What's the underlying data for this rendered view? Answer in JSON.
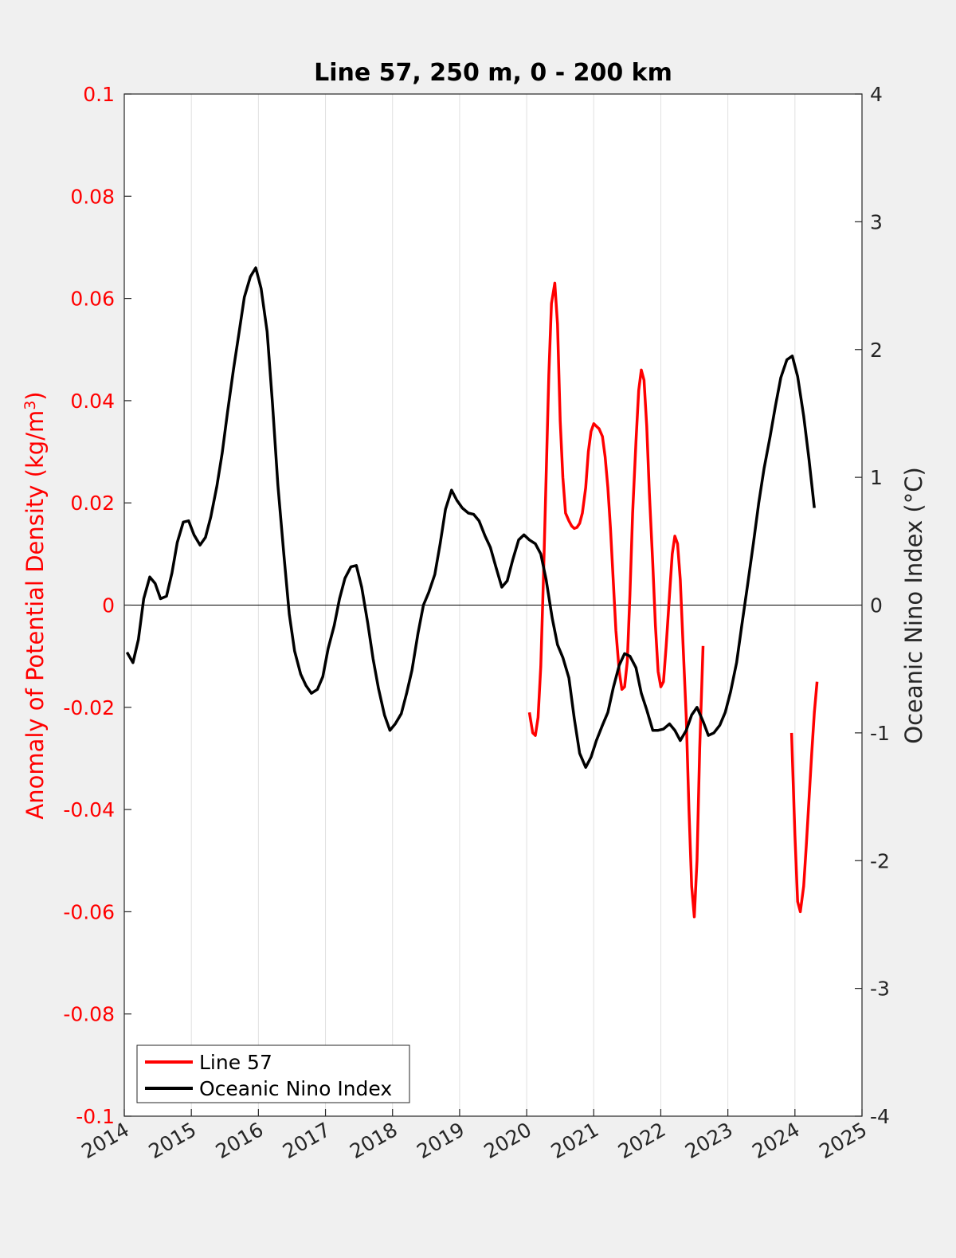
{
  "chart_data": {
    "type": "line",
    "title": "Line 57, 250 m, 0 - 200 km",
    "xlabel": "",
    "ylabel_left": "Anomaly of Potential Density (kg/m",
    "ylabel_left_sup": "3",
    "ylabel_left_close": ")",
    "ylabel_right": "Oceanic Nino Index (°C)",
    "xlim": [
      2014,
      2025
    ],
    "ylim_left": [
      -0.1,
      0.1
    ],
    "ylim_right": [
      -4,
      4
    ],
    "x_ticks": [
      "2014",
      "2015",
      "2016",
      "2017",
      "2018",
      "2019",
      "2020",
      "2021",
      "2022",
      "2023",
      "2024",
      "2025"
    ],
    "y_left_ticks": [
      "0.1",
      "0.08",
      "0.06",
      "0.04",
      "0.02",
      "0",
      "-0.02",
      "-0.04",
      "-0.06",
      "-0.08",
      "-0.1"
    ],
    "y_right_ticks": [
      "4",
      "3",
      "2",
      "1",
      "0",
      "-1",
      "-2",
      "-3",
      "-4"
    ],
    "grid": "vertical",
    "legend_position": "bottom-left",
    "colors": {
      "line57": "#ff0000",
      "oni": "#000000",
      "left_axis": "#ff0000",
      "right_axis": "#262626"
    },
    "series": [
      {
        "name": "Line 57",
        "axis": "left",
        "segments": [
          [
            [
              2020.04,
              -0.021
            ],
            [
              2020.09,
              -0.025
            ],
            [
              2020.13,
              -0.0255
            ],
            [
              2020.17,
              -0.022
            ],
            [
              2020.21,
              -0.012
            ],
            [
              2020.25,
              0.005
            ],
            [
              2020.29,
              0.025
            ],
            [
              2020.33,
              0.045
            ],
            [
              2020.37,
              0.059
            ],
            [
              2020.42,
              0.063
            ],
            [
              2020.46,
              0.055
            ],
            [
              2020.5,
              0.036
            ],
            [
              2020.54,
              0.025
            ],
            [
              2020.58,
              0.018
            ],
            [
              2020.63,
              0.0165
            ],
            [
              2020.67,
              0.0155
            ],
            [
              2020.71,
              0.015
            ],
            [
              2020.75,
              0.0152
            ],
            [
              2020.79,
              0.016
            ],
            [
              2020.83,
              0.018
            ],
            [
              2020.88,
              0.023
            ],
            [
              2020.92,
              0.03
            ],
            [
              2020.96,
              0.034
            ],
            [
              2021.0,
              0.0355
            ],
            [
              2021.04,
              0.035
            ],
            [
              2021.08,
              0.0345
            ],
            [
              2021.13,
              0.033
            ],
            [
              2021.17,
              0.029
            ],
            [
              2021.21,
              0.023
            ],
            [
              2021.25,
              0.015
            ],
            [
              2021.29,
              0.005
            ],
            [
              2021.33,
              -0.005
            ],
            [
              2021.38,
              -0.013
            ],
            [
              2021.42,
              -0.0165
            ],
            [
              2021.46,
              -0.016
            ],
            [
              2021.5,
              -0.011
            ],
            [
              2021.54,
              0.002
            ],
            [
              2021.58,
              0.018
            ],
            [
              2021.63,
              0.032
            ],
            [
              2021.67,
              0.042
            ],
            [
              2021.71,
              0.046
            ],
            [
              2021.75,
              0.044
            ],
            [
              2021.79,
              0.035
            ],
            [
              2021.83,
              0.022
            ],
            [
              2021.88,
              0.008
            ],
            [
              2021.92,
              -0.004
            ],
            [
              2021.96,
              -0.013
            ],
            [
              2022.0,
              -0.016
            ],
            [
              2022.04,
              -0.015
            ],
            [
              2022.08,
              -0.008
            ],
            [
              2022.13,
              0.002
            ],
            [
              2022.17,
              0.01
            ],
            [
              2022.21,
              0.0135
            ],
            [
              2022.25,
              0.012
            ],
            [
              2022.29,
              0.005
            ],
            [
              2022.33,
              -0.007
            ],
            [
              2022.38,
              -0.022
            ],
            [
              2022.42,
              -0.04
            ],
            [
              2022.46,
              -0.055
            ],
            [
              2022.5,
              -0.061
            ],
            [
              2022.54,
              -0.05
            ],
            [
              2022.58,
              -0.028
            ],
            [
              2022.63,
              -0.008
            ]
          ],
          [
            [
              2023.95,
              -0.025
            ],
            [
              2024.0,
              -0.045
            ],
            [
              2024.04,
              -0.058
            ],
            [
              2024.08,
              -0.06
            ],
            [
              2024.13,
              -0.055
            ],
            [
              2024.17,
              -0.047
            ],
            [
              2024.21,
              -0.038
            ],
            [
              2024.25,
              -0.029
            ],
            [
              2024.29,
              -0.021
            ],
            [
              2024.33,
              -0.015
            ]
          ]
        ]
      },
      {
        "name": "Oceanic Nino Index",
        "axis": "right",
        "segments": [
          [
            [
              2014.04,
              -0.37
            ],
            [
              2014.13,
              -0.45
            ],
            [
              2014.21,
              -0.27
            ],
            [
              2014.29,
              0.05
            ],
            [
              2014.38,
              0.22
            ],
            [
              2014.46,
              0.17
            ],
            [
              2014.54,
              0.05
            ],
            [
              2014.63,
              0.07
            ],
            [
              2014.71,
              0.25
            ],
            [
              2014.79,
              0.49
            ],
            [
              2014.88,
              0.65
            ],
            [
              2014.96,
              0.66
            ],
            [
              2015.04,
              0.55
            ],
            [
              2015.13,
              0.47
            ],
            [
              2015.21,
              0.53
            ],
            [
              2015.29,
              0.69
            ],
            [
              2015.38,
              0.93
            ],
            [
              2015.46,
              1.19
            ],
            [
              2015.54,
              1.51
            ],
            [
              2015.63,
              1.85
            ],
            [
              2015.71,
              2.13
            ],
            [
              2015.79,
              2.41
            ],
            [
              2015.88,
              2.57
            ],
            [
              2015.96,
              2.64
            ],
            [
              2016.04,
              2.48
            ],
            [
              2016.13,
              2.14
            ],
            [
              2016.21,
              1.58
            ],
            [
              2016.29,
              0.94
            ],
            [
              2016.38,
              0.39
            ],
            [
              2016.46,
              -0.07
            ],
            [
              2016.54,
              -0.36
            ],
            [
              2016.63,
              -0.54
            ],
            [
              2016.71,
              -0.63
            ],
            [
              2016.79,
              -0.69
            ],
            [
              2016.88,
              -0.66
            ],
            [
              2016.96,
              -0.56
            ],
            [
              2017.04,
              -0.34
            ],
            [
              2017.13,
              -0.16
            ],
            [
              2017.21,
              0.05
            ],
            [
              2017.29,
              0.21
            ],
            [
              2017.38,
              0.3
            ],
            [
              2017.46,
              0.31
            ],
            [
              2017.54,
              0.14
            ],
            [
              2017.63,
              -0.14
            ],
            [
              2017.71,
              -0.42
            ],
            [
              2017.79,
              -0.65
            ],
            [
              2017.88,
              -0.86
            ],
            [
              2017.96,
              -0.98
            ],
            [
              2018.04,
              -0.93
            ],
            [
              2018.13,
              -0.85
            ],
            [
              2018.21,
              -0.69
            ],
            [
              2018.29,
              -0.51
            ],
            [
              2018.38,
              -0.22
            ],
            [
              2018.46,
              0.0
            ],
            [
              2018.54,
              0.1
            ],
            [
              2018.63,
              0.24
            ],
            [
              2018.71,
              0.48
            ],
            [
              2018.79,
              0.75
            ],
            [
              2018.88,
              0.9
            ],
            [
              2018.96,
              0.82
            ],
            [
              2019.04,
              0.76
            ],
            [
              2019.13,
              0.72
            ],
            [
              2019.21,
              0.71
            ],
            [
              2019.29,
              0.66
            ],
            [
              2019.38,
              0.54
            ],
            [
              2019.46,
              0.45
            ],
            [
              2019.54,
              0.3
            ],
            [
              2019.63,
              0.14
            ],
            [
              2019.71,
              0.19
            ],
            [
              2019.79,
              0.35
            ],
            [
              2019.88,
              0.51
            ],
            [
              2019.96,
              0.55
            ],
            [
              2020.04,
              0.51
            ],
            [
              2020.13,
              0.48
            ],
            [
              2020.21,
              0.4
            ],
            [
              2020.29,
              0.2
            ],
            [
              2020.38,
              -0.1
            ],
            [
              2020.46,
              -0.31
            ],
            [
              2020.54,
              -0.41
            ],
            [
              2020.63,
              -0.57
            ],
            [
              2020.71,
              -0.89
            ],
            [
              2020.79,
              -1.16
            ],
            [
              2020.88,
              -1.27
            ],
            [
              2020.96,
              -1.19
            ],
            [
              2021.04,
              -1.06
            ],
            [
              2021.13,
              -0.94
            ],
            [
              2021.21,
              -0.84
            ],
            [
              2021.29,
              -0.65
            ],
            [
              2021.38,
              -0.47
            ],
            [
              2021.46,
              -0.38
            ],
            [
              2021.54,
              -0.4
            ],
            [
              2021.63,
              -0.49
            ],
            [
              2021.71,
              -0.69
            ],
            [
              2021.79,
              -0.82
            ],
            [
              2021.88,
              -0.98
            ],
            [
              2021.96,
              -0.98
            ],
            [
              2022.04,
              -0.97
            ],
            [
              2022.13,
              -0.93
            ],
            [
              2022.21,
              -0.98
            ],
            [
              2022.29,
              -1.06
            ],
            [
              2022.38,
              -0.98
            ],
            [
              2022.46,
              -0.86
            ],
            [
              2022.54,
              -0.8
            ],
            [
              2022.63,
              -0.91
            ],
            [
              2022.71,
              -1.02
            ],
            [
              2022.79,
              -1.0
            ],
            [
              2022.88,
              -0.94
            ],
            [
              2022.96,
              -0.84
            ],
            [
              2023.04,
              -0.68
            ],
            [
              2023.13,
              -0.45
            ],
            [
              2023.21,
              -0.15
            ],
            [
              2023.29,
              0.14
            ],
            [
              2023.38,
              0.48
            ],
            [
              2023.46,
              0.8
            ],
            [
              2023.54,
              1.07
            ],
            [
              2023.63,
              1.32
            ],
            [
              2023.71,
              1.56
            ],
            [
              2023.79,
              1.78
            ],
            [
              2023.88,
              1.92
            ],
            [
              2023.96,
              1.95
            ],
            [
              2024.04,
              1.79
            ],
            [
              2024.13,
              1.48
            ],
            [
              2024.21,
              1.14
            ],
            [
              2024.29,
              0.76
            ]
          ]
        ]
      }
    ]
  }
}
